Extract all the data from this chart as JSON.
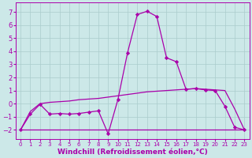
{
  "xlabel": "Windchill (Refroidissement éolien,°C)",
  "xlim": [
    -0.5,
    23.5
  ],
  "ylim": [
    -2.7,
    7.7
  ],
  "yticks": [
    -2,
    -1,
    0,
    1,
    2,
    3,
    4,
    5,
    6,
    7
  ],
  "xticks": [
    0,
    1,
    2,
    3,
    4,
    5,
    6,
    7,
    8,
    9,
    10,
    11,
    12,
    13,
    14,
    15,
    16,
    17,
    18,
    19,
    20,
    21,
    22,
    23
  ],
  "background_color": "#cce8e8",
  "grid_color": "#aacccc",
  "line_color": "#aa00aa",
  "line1_x": [
    0,
    1,
    2,
    3,
    4,
    5,
    6,
    7,
    8,
    9,
    10,
    11,
    12,
    13,
    14,
    15,
    16,
    17,
    18,
    19,
    20,
    21,
    22,
    23
  ],
  "line1_y": [
    -2.0,
    -0.8,
    -0.05,
    -0.8,
    -0.75,
    -0.8,
    -0.75,
    -0.65,
    -0.55,
    -2.3,
    0.3,
    3.9,
    6.8,
    7.05,
    6.65,
    3.5,
    3.2,
    1.1,
    1.15,
    1.05,
    1.0,
    -0.2,
    -1.8,
    -2.0
  ],
  "line2_x": [
    0,
    1,
    2,
    3,
    4,
    5,
    6,
    7,
    8,
    9,
    10,
    11,
    12,
    13,
    14,
    15,
    16,
    17,
    18,
    19,
    20,
    21,
    22,
    23
  ],
  "line2_y": [
    -2.0,
    -0.6,
    0.0,
    0.1,
    0.15,
    0.2,
    0.3,
    0.35,
    0.4,
    0.5,
    0.6,
    0.7,
    0.8,
    0.9,
    0.95,
    1.0,
    1.05,
    1.1,
    1.15,
    1.1,
    1.05,
    1.0,
    -0.4,
    -2.0
  ],
  "line3_x": [
    0,
    1,
    2,
    3,
    4,
    5,
    6,
    7,
    8,
    9,
    10,
    11,
    12,
    13,
    14,
    15,
    16,
    17,
    18,
    19,
    20,
    21,
    22,
    23
  ],
  "line3_y": [
    -2.0,
    -2.0,
    -2.0,
    -2.0,
    -2.0,
    -2.0,
    -2.0,
    -2.0,
    -2.0,
    -2.0,
    -2.0,
    -2.0,
    -2.0,
    -2.0,
    -2.0,
    -2.0,
    -2.0,
    -2.0,
    -2.0,
    -2.0,
    -2.0,
    -2.0,
    -2.0,
    -2.0
  ],
  "marker": "D",
  "markersize": 2.2,
  "linewidth": 0.9,
  "xlabel_fontsize": 6.5,
  "tick_fontsize": 6
}
